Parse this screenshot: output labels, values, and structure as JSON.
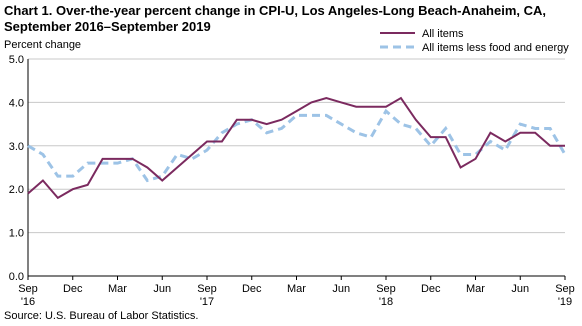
{
  "chart_data": {
    "type": "line",
    "title": [
      "Chart 1. Over-the-year percent change in CPI-U, Los Angeles-Long Beach-Anaheim, CA,",
      "September 2016–September 2019"
    ],
    "ylabel": "Percent change",
    "source": "Source: U.S. Bureau of Labor Statistics.",
    "categories": [
      "Sep '16",
      null,
      null,
      "Dec",
      null,
      null,
      "Mar",
      null,
      null,
      "Jun",
      null,
      null,
      "Sep '17",
      null,
      null,
      "Dec",
      null,
      null,
      "Mar",
      null,
      null,
      "Jun",
      null,
      null,
      "Sep '18",
      null,
      null,
      "Dec",
      null,
      null,
      "Mar",
      null,
      null,
      "Jun",
      null,
      null,
      "Sep '19"
    ],
    "series": [
      {
        "name": "All items",
        "color": "#7b2a5f",
        "dashed": false,
        "values": [
          1.9,
          2.2,
          1.8,
          2.0,
          2.1,
          2.7,
          2.7,
          2.7,
          2.5,
          2.2,
          2.5,
          2.8,
          3.1,
          3.1,
          3.6,
          3.6,
          3.5,
          3.6,
          3.8,
          4.0,
          4.1,
          4.0,
          3.9,
          3.9,
          3.9,
          4.1,
          3.6,
          3.2,
          3.2,
          2.5,
          2.7,
          3.3,
          3.1,
          3.3,
          3.3,
          3.0,
          3.0
        ]
      },
      {
        "name": "All items less food and energy",
        "color": "#9dc3e6",
        "dashed": true,
        "values": [
          3.0,
          2.8,
          2.3,
          2.3,
          2.6,
          2.6,
          2.6,
          2.7,
          2.2,
          2.3,
          2.8,
          2.7,
          2.9,
          3.3,
          3.5,
          3.6,
          3.3,
          3.4,
          3.7,
          3.7,
          3.7,
          3.5,
          3.3,
          3.2,
          3.8,
          3.5,
          3.4,
          3.0,
          3.4,
          2.8,
          2.8,
          3.1,
          2.9,
          3.5,
          3.4,
          3.4,
          2.8
        ]
      }
    ],
    "ylim": [
      0,
      5
    ],
    "yticks": [
      {
        "value": 0,
        "label": "0.0"
      },
      {
        "value": 1,
        "label": "1.0"
      },
      {
        "value": 2,
        "label": "2.0"
      },
      {
        "value": 3,
        "label": "3.0"
      },
      {
        "value": 4,
        "label": "4.0"
      },
      {
        "value": 5,
        "label": "5.0"
      }
    ],
    "grid": true,
    "legend": "top-right"
  }
}
